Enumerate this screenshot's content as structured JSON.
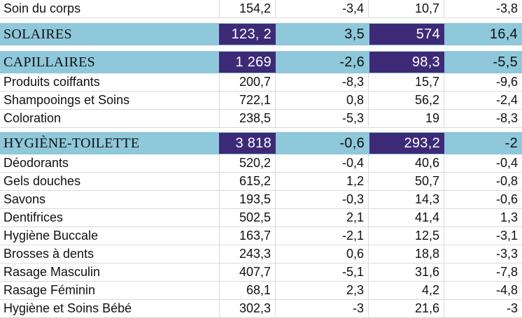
{
  "table": {
    "rows": [
      {
        "type": "item",
        "label": "Soin du corps",
        "v1": "154,2",
        "v2": "-3,4",
        "v3": "10,7",
        "v4": "-3,8"
      },
      {
        "type": "cat",
        "label": "SOLAIRES",
        "v1": "123, 2",
        "v2": "3,5",
        "v3": "574",
        "v4": "16,4"
      },
      {
        "type": "cat",
        "label": "CAPILLAIRES",
        "v1": "1 269",
        "v2": "-2,6",
        "v3": "98,3",
        "v4": "-5,5"
      },
      {
        "type": "item",
        "label": "Produits coiffants",
        "v1": "200,7",
        "v2": "-8,3",
        "v3": "15,7",
        "v4": "-9,6"
      },
      {
        "type": "item",
        "label": "Shampooings et Soins",
        "v1": "722,1",
        "v2": "0,8",
        "v3": "56,2",
        "v4": "-2,4"
      },
      {
        "type": "item",
        "label": "Coloration",
        "v1": "238,5",
        "v2": "-5,3",
        "v3": "19",
        "v4": "-8,3"
      },
      {
        "type": "cat",
        "label": "HYGIÈNE-TOILETTE",
        "v1": "3 818",
        "v2": "-0,6",
        "v3": "293,2",
        "v4": "-2"
      },
      {
        "type": "item",
        "label": "Déodorants",
        "v1": "520,2",
        "v2": "-0,4",
        "v3": "40,6",
        "v4": "-0,4"
      },
      {
        "type": "item",
        "label": "Gels douches",
        "v1": "615,2",
        "v2": "1,2",
        "v3": "50,7",
        "v4": "-0,8"
      },
      {
        "type": "item",
        "label": "Savons",
        "v1": "193,5",
        "v2": "-0,3",
        "v3": "14,3",
        "v4": "-0,6"
      },
      {
        "type": "item",
        "label": "Dentifrices",
        "v1": "502,5",
        "v2": "2,1",
        "v3": "41,4",
        "v4": "1,3"
      },
      {
        "type": "item",
        "label": "Hygiène Buccale",
        "v1": "163,7",
        "v2": "-2,1",
        "v3": "12,5",
        "v4": "-3,1"
      },
      {
        "type": "item",
        "label": "Brosses à dents",
        "v1": "243,3",
        "v2": "0,6",
        "v3": "18,8",
        "v4": "-3,3"
      },
      {
        "type": "item",
        "label": "Rasage Masculin",
        "v1": "407,7",
        "v2": "-5,1",
        "v3": "31,6",
        "v4": "-7,8"
      },
      {
        "type": "item",
        "label": "Rasage Féminin",
        "v1": "68,1",
        "v2": "2,3",
        "v3": "4,2",
        "v4": "-4,8"
      },
      {
        "type": "item",
        "label": "Hygiène et Soins Bébé",
        "v1": "302,3",
        "v2": "-3",
        "v3": "21,6",
        "v4": "-3"
      }
    ]
  },
  "colors": {
    "category_band": "#8ec8da",
    "highlight_cell": "#3c2a77",
    "highlight_text": "#ffffff",
    "grid_line": "#dadada"
  }
}
